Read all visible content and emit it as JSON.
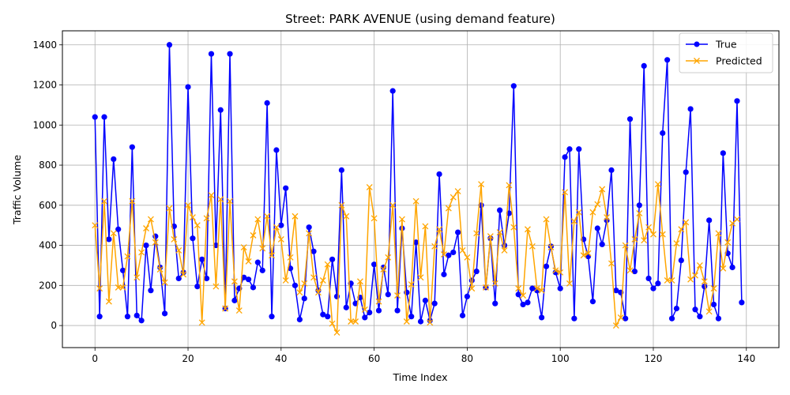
{
  "chart_data": {
    "type": "line",
    "title": "Street: PARK AVENUE (using demand feature)",
    "xlabel": "Time Index",
    "ylabel": "Traffic Volume",
    "xlim": [
      -7,
      147
    ],
    "ylim": [
      -110,
      1470
    ],
    "xticks": [
      0,
      20,
      40,
      60,
      80,
      100,
      120,
      140
    ],
    "yticks": [
      0,
      200,
      400,
      600,
      800,
      1000,
      1200,
      1400
    ],
    "grid": true,
    "legend_position": "top-right",
    "series": [
      {
        "name": "True",
        "color": "#0000ff",
        "marker": "circle",
        "values": [
          1040,
          45,
          1040,
          430,
          830,
          480,
          275,
          45,
          890,
          50,
          25,
          400,
          175,
          445,
          290,
          60,
          1400,
          495,
          235,
          265,
          1190,
          435,
          195,
          330,
          235,
          1355,
          400,
          1075,
          85,
          1355,
          125,
          185,
          240,
          230,
          190,
          315,
          275,
          1110,
          45,
          875,
          500,
          685,
          285,
          200,
          30,
          135,
          490,
          370,
          175,
          55,
          45,
          330,
          145,
          775,
          90,
          210,
          110,
          140,
          40,
          65,
          305,
          75,
          290,
          155,
          1170,
          75,
          485,
          165,
          45,
          415,
          20,
          125,
          25,
          110,
          755,
          255,
          350,
          365,
          465,
          50,
          145,
          225,
          270,
          600,
          190,
          435,
          110,
          575,
          400,
          560,
          1195,
          155,
          105,
          115,
          185,
          175,
          40,
          295,
          395,
          265,
          185,
          840,
          880,
          35,
          880,
          430,
          345,
          120,
          485,
          405,
          525,
          775,
          175,
          165,
          35,
          1030,
          270,
          600,
          1295,
          235,
          185,
          210,
          960,
          1325,
          35,
          85,
          325,
          765,
          1080,
          80,
          45,
          195,
          525,
          105,
          35,
          860,
          360,
          290,
          1120,
          115
        ]
      },
      {
        "name": "Predicted",
        "color": "#ffa500",
        "marker": "x",
        "values": [
          500,
          185,
          620,
          120,
          460,
          190,
          190,
          345,
          620,
          240,
          365,
          485,
          530,
          415,
          280,
          215,
          585,
          430,
          375,
          255,
          600,
          540,
          500,
          15,
          535,
          650,
          195,
          630,
          85,
          620,
          220,
          75,
          390,
          320,
          450,
          530,
          385,
          545,
          350,
          490,
          430,
          225,
          340,
          545,
          165,
          210,
          460,
          240,
          165,
          225,
          305,
          10,
          -35,
          600,
          545,
          20,
          20,
          220,
          80,
          690,
          535,
          120,
          280,
          340,
          600,
          150,
          530,
          20,
          205,
          620,
          240,
          495,
          15,
          395,
          480,
          355,
          585,
          640,
          670,
          375,
          340,
          185,
          460,
          705,
          190,
          445,
          210,
          465,
          375,
          700,
          490,
          185,
          150,
          480,
          395,
          185,
          175,
          530,
          390,
          275,
          265,
          665,
          210,
          520,
          565,
          350,
          360,
          565,
          605,
          680,
          540,
          310,
          0,
          40,
          400,
          275,
          430,
          560,
          425,
          490,
          455,
          705,
          455,
          225,
          225,
          410,
          480,
          515,
          230,
          250,
          300,
          220,
          70,
          185,
          460,
          285,
          415,
          510,
          530
        ]
      }
    ]
  }
}
